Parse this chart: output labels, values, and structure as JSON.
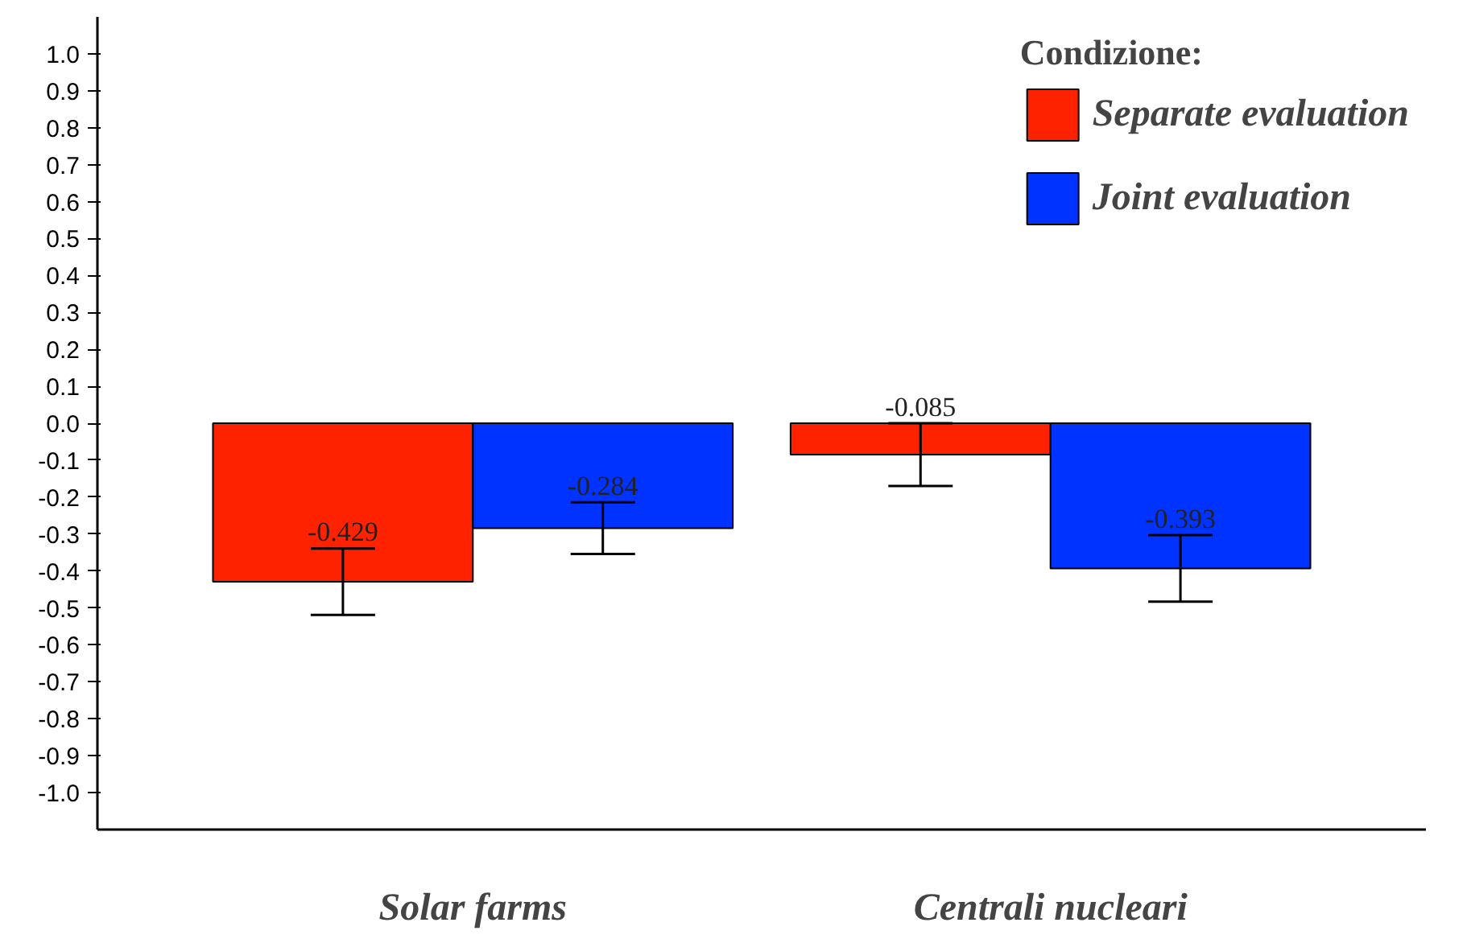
{
  "chart_data": {
    "type": "bar",
    "categories": [
      "Solar farms",
      "Centrali nucleari"
    ],
    "series": [
      {
        "name": "Separate evaluation",
        "color": "#ff2200",
        "values": [
          -0.429,
          -0.085
        ],
        "errors": [
          0.09,
          0.085
        ]
      },
      {
        "name": "Joint evaluation",
        "color": "#0033ff",
        "values": [
          -0.284,
          -0.393
        ],
        "errors": [
          0.07,
          0.09
        ]
      }
    ],
    "legend_title": "Condizione:",
    "legend": "top right",
    "data_labels": true,
    "grid": false,
    "ylim": [
      -1.1,
      1.1
    ],
    "yticks": [
      {
        "value": -1.0,
        "label": "-1.0"
      },
      {
        "value": -0.9,
        "label": "-0.9"
      },
      {
        "value": -0.8,
        "label": "-0.8"
      },
      {
        "value": -0.7,
        "label": "-0.7"
      },
      {
        "value": -0.6,
        "label": "-0.6"
      },
      {
        "value": -0.5,
        "label": "-0.5"
      },
      {
        "value": -0.4,
        "label": "-0.4"
      },
      {
        "value": -0.3,
        "label": "-0.3"
      },
      {
        "value": -0.2,
        "label": "-0.2"
      },
      {
        "value": -0.1,
        "label": "-0.1"
      },
      {
        "value": 0.0,
        "label": "0.0"
      },
      {
        "value": 0.1,
        "label": "0.1"
      },
      {
        "value": 0.2,
        "label": "0.2"
      },
      {
        "value": 0.3,
        "label": "0.3"
      },
      {
        "value": 0.4,
        "label": "0.4"
      },
      {
        "value": 0.5,
        "label": "0.5"
      },
      {
        "value": 0.6,
        "label": "0.6"
      },
      {
        "value": 0.7,
        "label": "0.7"
      },
      {
        "value": 0.8,
        "label": "0.8"
      },
      {
        "value": 0.9,
        "label": "0.9"
      },
      {
        "value": 1.0,
        "label": "1.0"
      }
    ]
  }
}
